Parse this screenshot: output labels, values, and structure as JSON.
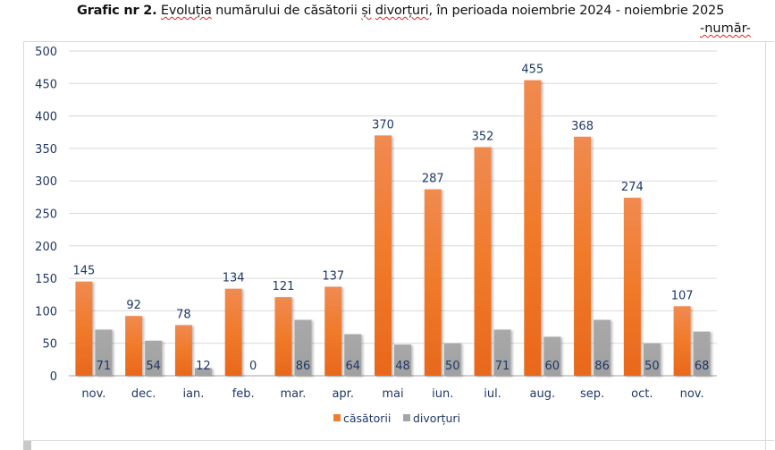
{
  "header": {
    "title_bold": "Grafic nr 2.",
    "title_part1": "Evoluția",
    "title_part2": " numărului de căsătorii ",
    "title_part3": "și",
    "title_part4": " ",
    "title_part5": "divorțuri",
    "title_part6": ", în perioada noiembrie 2024 - noiembrie 2025",
    "unit": "-număr-"
  },
  "colors": {
    "casatorii": "#ed7d31",
    "divorturi": "#a5a5a5",
    "label_text": "#1f3864",
    "gridline": "#d9d9d9"
  },
  "chart_data": {
    "type": "bar",
    "title": "Grafic nr 2. Evoluția numărului de căsătorii și divorțuri, în perioada noiembrie 2024 - noiembrie 2025",
    "xlabel": "",
    "ylabel": "-număr-",
    "categories": [
      "nov.",
      "dec.",
      "ian.",
      "feb.",
      "mar.",
      "apr.",
      "mai",
      "iun.",
      "iul.",
      "aug.",
      "sep.",
      "oct.",
      "nov."
    ],
    "series": [
      {
        "name": "căsătorii",
        "values": [
          145,
          92,
          78,
          134,
          121,
          137,
          370,
          287,
          352,
          455,
          368,
          274,
          107
        ]
      },
      {
        "name": "divorțuri",
        "values": [
          71,
          54,
          12,
          0,
          86,
          64,
          48,
          50,
          71,
          60,
          86,
          50,
          68
        ]
      }
    ],
    "ylim": [
      0,
      500
    ],
    "yticks": [
      0,
      50,
      100,
      150,
      200,
      250,
      300,
      350,
      400,
      450,
      500
    ],
    "grid": true,
    "legend": "bottom-center"
  }
}
